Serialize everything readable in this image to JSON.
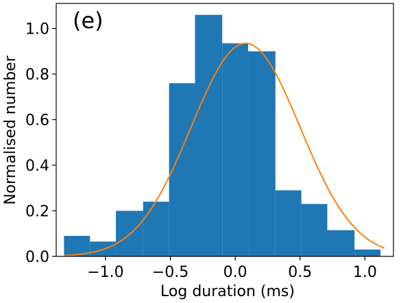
{
  "chart_data": {
    "type": "bar",
    "panel_label": "(e)",
    "xlabel": "Log duration (ms)",
    "ylabel": "Normalised number",
    "xlim": [
      -1.38,
      1.22
    ],
    "ylim": [
      0.0,
      1.11
    ],
    "grid": false,
    "legend": "none",
    "x_ticks": [
      {
        "value": -1.0,
        "label": "−1.0"
      },
      {
        "value": -0.5,
        "label": "−0.5"
      },
      {
        "value": 0.0,
        "label": "0.0"
      },
      {
        "value": 0.5,
        "label": "0.5"
      },
      {
        "value": 1.0,
        "label": "1.0"
      }
    ],
    "y_ticks": [
      {
        "value": 0.0,
        "label": "0.0"
      },
      {
        "value": 0.2,
        "label": "0.2"
      },
      {
        "value": 0.4,
        "label": "0.4"
      },
      {
        "value": 0.6,
        "label": "0.6"
      },
      {
        "value": 0.8,
        "label": "0.8"
      },
      {
        "value": 1.0,
        "label": "1.0"
      }
    ],
    "histogram": {
      "color": "#1f77b4",
      "bin_edges": [
        -1.32,
        -1.12,
        -0.92,
        -0.71,
        -0.51,
        -0.31,
        -0.1,
        0.1,
        0.31,
        0.51,
        0.71,
        0.92,
        1.12
      ],
      "values": [
        0.09,
        0.065,
        0.2,
        0.24,
        0.76,
        1.06,
        0.935,
        0.9,
        0.29,
        0.23,
        0.115,
        0.03
      ]
    },
    "fit_curve": {
      "color": "#ff7f0e",
      "type": "gaussian",
      "amplitude": 0.935,
      "mean": 0.08,
      "sigma": 0.42,
      "x_range": [
        -1.32,
        1.15
      ]
    }
  }
}
